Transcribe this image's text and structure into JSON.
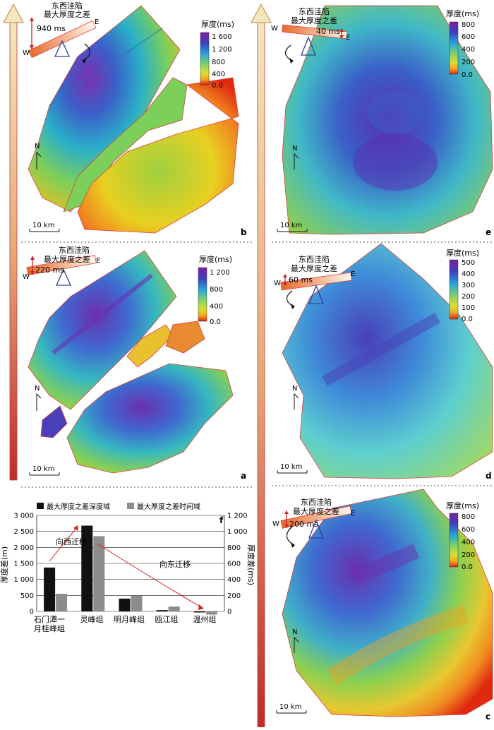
{
  "panels": {
    "b": {
      "letter": "b",
      "tilt_label": "东西洼陷",
      "tilt_label2": "最大厚度之差",
      "value": "940 ms",
      "legend_title": "厚度(ms)",
      "ticks": [
        "1 600",
        "1 200",
        "800",
        "400",
        "0.0"
      ],
      "scale": "10 km"
    },
    "a": {
      "letter": "a",
      "tilt_label": "东西洼陷",
      "tilt_label2": "最大厚度之差",
      "value": "220 ms",
      "legend_title": "厚度(ms)",
      "ticks": [
        "1 200",
        "800",
        "400",
        "0.0"
      ],
      "scale": "10 km"
    },
    "e": {
      "letter": "e",
      "tilt_label": "东西洼陷",
      "tilt_label2": "最大厚度之差",
      "value": "40 ms",
      "legend_title": "厚度(ms)",
      "ticks": [
        "800",
        "600",
        "400",
        "200",
        "0.0"
      ],
      "scale": "10 km"
    },
    "d": {
      "letter": "d",
      "tilt_label": "东西洼陷",
      "tilt_label2": "最大厚度之差",
      "value": "60 ms",
      "legend_title": "厚度(ms)",
      "ticks": [
        "500",
        "400",
        "300",
        "200",
        "100",
        "0.0"
      ],
      "scale": "10 km"
    },
    "c": {
      "letter": "c",
      "tilt_label": "东西洼陷",
      "tilt_label2": "最大厚度之差",
      "value": "200 ms",
      "legend_title": "厚度(ms)",
      "ticks": [
        "800",
        "600",
        "400",
        "200",
        "0.0"
      ],
      "scale": "10 km"
    }
  },
  "compass": {
    "north": "N",
    "west": "W",
    "east": "E"
  },
  "chart": {
    "letter": "f",
    "legend": [
      "最大厚度之差深度域",
      "最大厚度之差时间域"
    ],
    "ylabel_left": "厚度差(m)",
    "ylabel_right": "厚度差(ms)",
    "left_ticks": [
      "3 000",
      "2 500",
      "2 000",
      "1 500",
      "1 000",
      "500",
      "0"
    ],
    "right_ticks": [
      "1 200",
      "1 000",
      "800",
      "600",
      "400",
      "200",
      "0"
    ],
    "cat_labels": [
      "石门潭一",
      "月桂峰组",
      "灵峰组",
      "明月峰组",
      "瓯江组",
      "温州组"
    ],
    "annotations": [
      "向西迁移",
      "向东迁移"
    ]
  },
  "chart_data": {
    "type": "bar",
    "categories": [
      "石门潭一月桂峰组",
      "灵峰组",
      "明月峰组",
      "瓯江组",
      "温州组"
    ],
    "series": [
      {
        "name": "最大厚度之差深度域",
        "values": [
          1370,
          2680,
          400,
          40,
          -20
        ]
      },
      {
        "name": "最大厚度之差时间域",
        "values": [
          220,
          940,
          200,
          60,
          -40
        ]
      }
    ],
    "ylabel": "厚度差(m)",
    "ylabel_right": "厚度差(ms)",
    "ylim": [
      0,
      3000
    ],
    "ylim_right": [
      0,
      1200
    ],
    "grid": true,
    "legend": "top"
  },
  "colors": {
    "arrow_top": "#f2e7c2",
    "arrow_bottom": "#c0392b",
    "border_red": "#d84040",
    "bar_depth": "#111111",
    "bar_time": "#8c8c8c"
  }
}
